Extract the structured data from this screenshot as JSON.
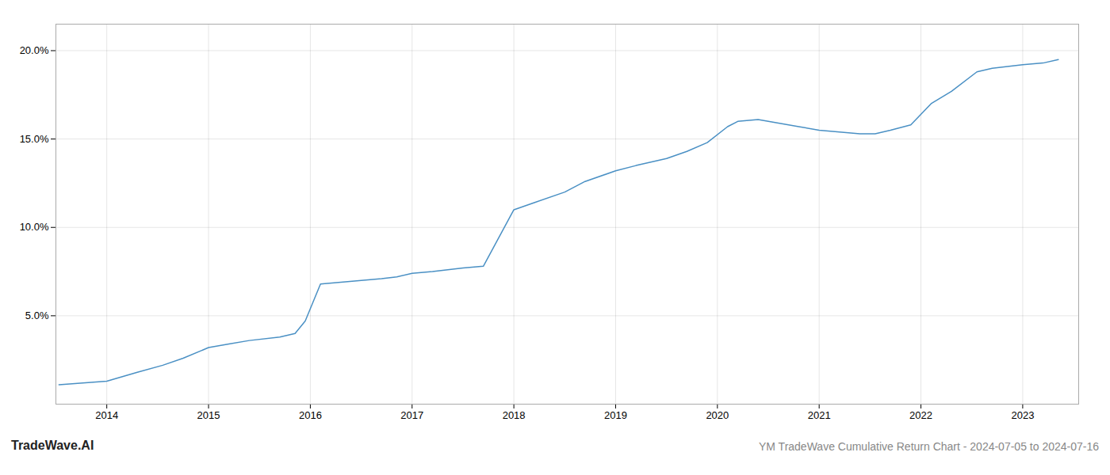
{
  "chart_data": {
    "type": "line",
    "x": [
      2013.53,
      2014.0,
      2014.3,
      2014.55,
      2014.75,
      2015.0,
      2015.2,
      2015.4,
      2015.7,
      2015.85,
      2015.95,
      2016.1,
      2016.3,
      2016.5,
      2016.7,
      2016.85,
      2017.0,
      2017.2,
      2017.5,
      2017.7,
      2018.0,
      2018.2,
      2018.5,
      2018.7,
      2019.0,
      2019.2,
      2019.5,
      2019.7,
      2019.9,
      2020.1,
      2020.2,
      2020.4,
      2020.6,
      2020.8,
      2021.0,
      2021.2,
      2021.4,
      2021.55,
      2021.7,
      2021.9,
      2022.1,
      2022.3,
      2022.55,
      2022.7,
      2022.85,
      2023.0,
      2023.2,
      2023.35
    ],
    "values": [
      0.011,
      0.013,
      0.018,
      0.022,
      0.026,
      0.032,
      0.034,
      0.036,
      0.038,
      0.04,
      0.047,
      0.068,
      0.069,
      0.07,
      0.071,
      0.072,
      0.074,
      0.075,
      0.077,
      0.078,
      0.11,
      0.114,
      0.12,
      0.126,
      0.132,
      0.135,
      0.139,
      0.143,
      0.148,
      0.157,
      0.16,
      0.161,
      0.159,
      0.157,
      0.155,
      0.154,
      0.153,
      0.153,
      0.155,
      0.158,
      0.17,
      0.177,
      0.188,
      0.19,
      0.191,
      0.192,
      0.193,
      0.195
    ],
    "color": "#4a90c4",
    "xlim": [
      2013.5,
      2023.55
    ],
    "ylim": [
      0.0,
      0.215
    ],
    "xticks": [
      2014,
      2015,
      2016,
      2017,
      2018,
      2019,
      2020,
      2021,
      2022,
      2023
    ],
    "yticks": [
      {
        "value": 0.05,
        "label": "5.0%"
      },
      {
        "value": 0.1,
        "label": "10.0%"
      },
      {
        "value": 0.15,
        "label": "15.0%"
      },
      {
        "value": 0.2,
        "label": "20.0%"
      }
    ],
    "grid": true,
    "annotations": [
      "TradeWave.AI",
      "YM TradeWave Cumulative Return Chart - 2024-07-05 to 2024-07-16"
    ]
  }
}
